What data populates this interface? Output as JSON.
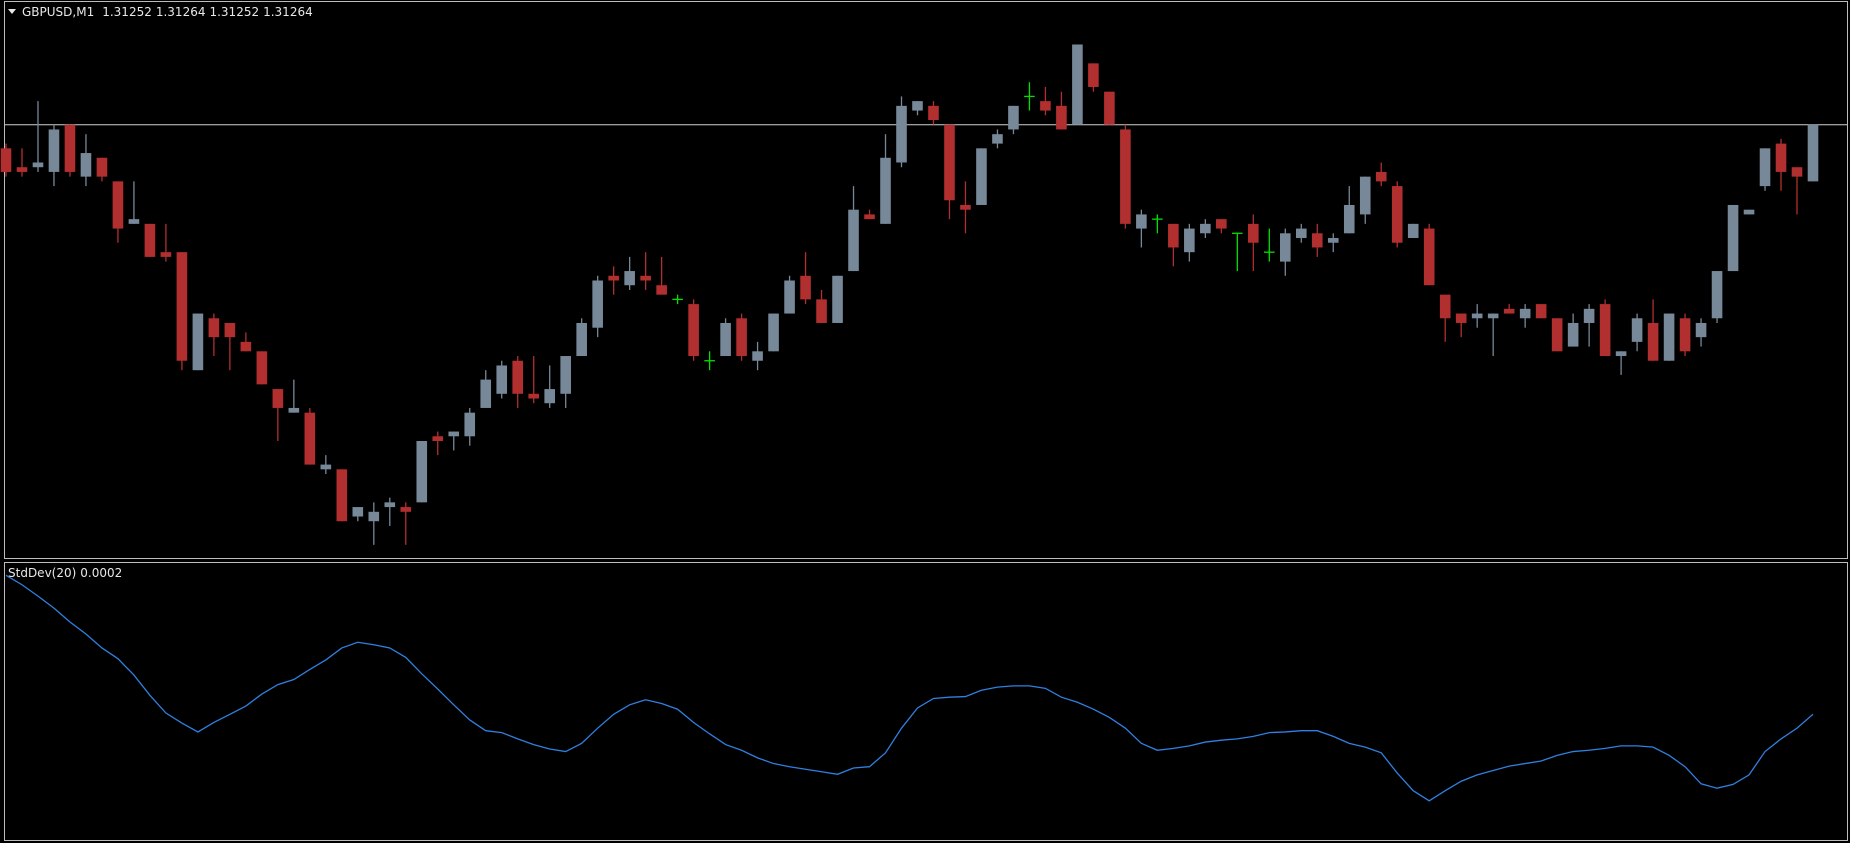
{
  "chart_data": [
    {
      "type": "candlestick",
      "title": "GBPUSD,M1",
      "up_color": "#778899",
      "down_color": "#b22f2f",
      "doji_color": "#00e000",
      "price_line_color": "#d0d0d0",
      "ylim": [
        1.31172,
        1.3129
      ],
      "open": [
        1.31259,
        1.31255,
        1.31255,
        1.31254,
        1.31264,
        1.31253,
        1.31257,
        1.31252,
        1.31243,
        1.31243,
        1.31237,
        1.31237,
        1.31212,
        1.31223,
        1.31222,
        1.31218,
        1.31216,
        1.31208,
        1.31203,
        1.31203,
        1.31191,
        1.31191,
        1.31181,
        1.3118,
        1.31183,
        1.31183,
        1.31184,
        1.31198,
        1.31198,
        1.31198,
        1.31204,
        1.31207,
        1.31214,
        1.31207,
        1.31205,
        1.31207,
        1.31215,
        1.31221,
        1.31232,
        1.3123,
        1.31232,
        1.3123,
        1.31227,
        1.31226,
        1.31214,
        1.31215,
        1.31223,
        1.31214,
        1.31216,
        1.31224,
        1.31232,
        1.31227,
        1.31222,
        1.31233,
        1.31245,
        1.31243,
        1.31256,
        1.31267,
        1.31268,
        1.31264,
        1.31247,
        1.31247,
        1.3126,
        1.31263,
        1.3127,
        1.31269,
        1.31268,
        1.31264,
        1.31277,
        1.31271,
        1.31263,
        1.31242,
        1.31244,
        1.31243,
        1.31237,
        1.31241,
        1.31244,
        1.31241,
        1.31243,
        1.31237,
        1.31235,
        1.3124,
        1.31241,
        1.31239,
        1.31241,
        1.31245,
        1.31254,
        1.31251,
        1.3124,
        1.31242,
        1.31228,
        1.31224,
        1.31223,
        1.31223,
        1.31225,
        1.31223,
        1.31226,
        1.31223,
        1.31217,
        1.31222,
        1.31226,
        1.31215,
        1.31218,
        1.31222,
        1.31214,
        1.31223,
        1.31219,
        1.31223,
        1.31233,
        1.31245,
        1.31251,
        1.3126,
        1.31255,
        1.31252
      ],
      "high": [
        1.3126,
        1.31259,
        1.31269,
        1.31264,
        1.31264,
        1.31262,
        1.31257,
        1.31252,
        1.31252,
        1.31243,
        1.31243,
        1.31237,
        1.31224,
        1.31224,
        1.31222,
        1.3122,
        1.31216,
        1.31208,
        1.3121,
        1.31204,
        1.31194,
        1.31191,
        1.31183,
        1.31184,
        1.31185,
        1.31184,
        1.31197,
        1.31199,
        1.31199,
        1.31204,
        1.31212,
        1.31214,
        1.31215,
        1.31215,
        1.31213,
        1.31215,
        1.31223,
        1.31232,
        1.31234,
        1.31236,
        1.31237,
        1.31236,
        1.31228,
        1.31227,
        1.31216,
        1.31223,
        1.31224,
        1.31218,
        1.31224,
        1.31232,
        1.31237,
        1.31229,
        1.31232,
        1.31251,
        1.31246,
        1.31262,
        1.3127,
        1.31269,
        1.31269,
        1.31264,
        1.31252,
        1.31259,
        1.31263,
        1.31268,
        1.31273,
        1.31272,
        1.31271,
        1.31281,
        1.31277,
        1.31271,
        1.31264,
        1.31246,
        1.31245,
        1.31243,
        1.31243,
        1.31244,
        1.31244,
        1.31241,
        1.31245,
        1.31242,
        1.31242,
        1.31243,
        1.31243,
        1.31241,
        1.31251,
        1.31253,
        1.31256,
        1.31252,
        1.31243,
        1.31243,
        1.31228,
        1.31224,
        1.31226,
        1.31224,
        1.31226,
        1.31226,
        1.31226,
        1.31223,
        1.31224,
        1.31226,
        1.31227,
        1.31216,
        1.31224,
        1.31227,
        1.31224,
        1.31224,
        1.31223,
        1.31233,
        1.31247,
        1.31246,
        1.31259,
        1.31261,
        1.31255,
        1.31264
      ],
      "low": [
        1.31253,
        1.31253,
        1.31254,
        1.31251,
        1.31253,
        1.31251,
        1.31252,
        1.31239,
        1.31243,
        1.31236,
        1.31235,
        1.31212,
        1.31212,
        1.31215,
        1.31212,
        1.31216,
        1.31209,
        1.31197,
        1.31203,
        1.31192,
        1.3119,
        1.3118,
        1.3118,
        1.31175,
        1.31179,
        1.31175,
        1.31184,
        1.31194,
        1.31195,
        1.31196,
        1.31204,
        1.31206,
        1.31204,
        1.31205,
        1.31204,
        1.31204,
        1.31215,
        1.31219,
        1.31228,
        1.31229,
        1.31229,
        1.31228,
        1.31226,
        1.31214,
        1.31212,
        1.31215,
        1.31214,
        1.31212,
        1.31216,
        1.31224,
        1.31226,
        1.31222,
        1.31222,
        1.31233,
        1.31244,
        1.31243,
        1.31255,
        1.31266,
        1.31264,
        1.31244,
        1.31241,
        1.31247,
        1.31259,
        1.31262,
        1.31267,
        1.31266,
        1.31263,
        1.31264,
        1.31271,
        1.31264,
        1.31242,
        1.31238,
        1.31241,
        1.31234,
        1.31235,
        1.3124,
        1.31241,
        1.31233,
        1.31233,
        1.31235,
        1.31232,
        1.31239,
        1.31236,
        1.31237,
        1.31241,
        1.31243,
        1.31251,
        1.31238,
        1.3124,
        1.3123,
        1.31218,
        1.31219,
        1.31221,
        1.31215,
        1.31224,
        1.31221,
        1.31223,
        1.31216,
        1.31217,
        1.31217,
        1.31215,
        1.31211,
        1.31216,
        1.31214,
        1.31214,
        1.31215,
        1.31217,
        1.31222,
        1.31233,
        1.31245,
        1.3125,
        1.3125,
        1.31245,
        1.31252
      ],
      "close": [
        1.31254,
        1.31254,
        1.31256,
        1.31263,
        1.31254,
        1.31258,
        1.31253,
        1.31242,
        1.31244,
        1.31236,
        1.31236,
        1.31214,
        1.31224,
        1.31219,
        1.31219,
        1.31216,
        1.31209,
        1.31204,
        1.31204,
        1.31192,
        1.31192,
        1.3118,
        1.31183,
        1.31182,
        1.31184,
        1.31182,
        1.31197,
        1.31197,
        1.31199,
        1.31203,
        1.3121,
        1.31213,
        1.31207,
        1.31206,
        1.31208,
        1.31215,
        1.31222,
        1.31231,
        1.31231,
        1.31233,
        1.31231,
        1.31228,
        1.31227,
        1.31215,
        1.31214,
        1.31222,
        1.31215,
        1.31216,
        1.31224,
        1.31231,
        1.31227,
        1.31222,
        1.31232,
        1.31246,
        1.31244,
        1.31257,
        1.31268,
        1.31269,
        1.31265,
        1.31248,
        1.31246,
        1.31259,
        1.31262,
        1.31268,
        1.3127,
        1.31267,
        1.31263,
        1.31281,
        1.31272,
        1.31264,
        1.31243,
        1.31245,
        1.31244,
        1.31238,
        1.31242,
        1.31243,
        1.31242,
        1.31241,
        1.31239,
        1.31237,
        1.31241,
        1.31242,
        1.31238,
        1.3124,
        1.31247,
        1.31253,
        1.31252,
        1.31239,
        1.31243,
        1.3123,
        1.31223,
        1.31222,
        1.31224,
        1.31224,
        1.31224,
        1.31225,
        1.31223,
        1.31216,
        1.31222,
        1.31225,
        1.31215,
        1.31216,
        1.31223,
        1.31214,
        1.31224,
        1.31216,
        1.31222,
        1.31233,
        1.31247,
        1.31246,
        1.31259,
        1.31254,
        1.31253,
        1.31264
      ]
    },
    {
      "type": "line",
      "title": "StdDev(20)",
      "current_value": 0.0002,
      "color": "#2f80e0",
      "ylim": [
        0,
        0.00044
      ],
      "values": [
        0.000419,
        0.000404,
        0.000386,
        0.000367,
        0.000345,
        0.000326,
        0.000304,
        0.000287,
        0.000261,
        0.000229,
        0.000201,
        0.000185,
        0.000171,
        0.000186,
        0.000199,
        0.000212,
        0.000231,
        0.000246,
        0.000254,
        0.00027,
        0.000285,
        0.000304,
        0.000313,
        0.000309,
        0.000304,
        0.000289,
        0.000263,
        0.000239,
        0.000214,
        0.00019,
        0.000173,
        0.00017,
        0.00016,
        0.000151,
        0.000144,
        0.00014,
        0.000153,
        0.000177,
        0.000199,
        0.000214,
        0.000222,
        0.000216,
        0.000207,
        0.000186,
        0.000168,
        0.000151,
        0.000142,
        0.00013,
        0.000121,
        0.000116,
        0.000112,
        0.000108,
        0.000104,
        0.000114,
        0.000116,
        0.000138,
        0.000177,
        0.000209,
        0.000224,
        0.000226,
        0.000227,
        0.000237,
        0.000242,
        0.000244,
        0.000244,
        0.00024,
        0.000226,
        0.000218,
        0.000207,
        0.000194,
        0.000177,
        0.000153,
        0.000142,
        0.000145,
        0.000149,
        0.000155,
        0.000158,
        0.00016,
        0.000164,
        0.00017,
        0.000171,
        0.000173,
        0.000173,
        0.000164,
        0.000153,
        0.000147,
        0.000138,
        0.000106,
        7.8e-05,
        6.2e-05,
        7.8e-05,
        9.3e-05,
        0.000103,
        0.00011,
        0.000117,
        0.000121,
        0.000125,
        0.000134,
        0.00014,
        0.000142,
        0.000145,
        0.000149,
        0.000149,
        0.000147,
        0.000134,
        0.000116,
        8.9e-05,
        8.2e-05,
        8.8e-05,
        0.000103,
        0.00014,
        0.00016,
        0.000177,
        0.000199
      ]
    }
  ]
}
